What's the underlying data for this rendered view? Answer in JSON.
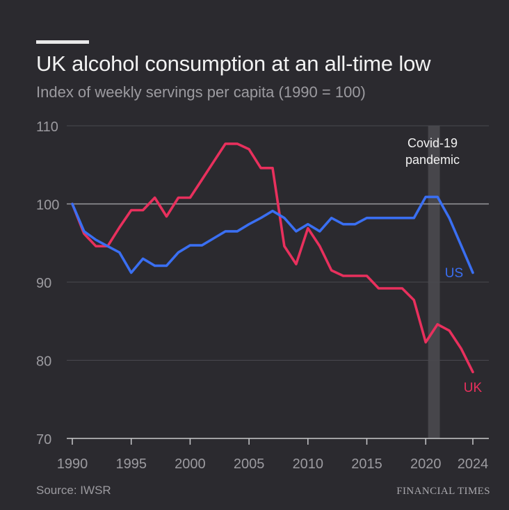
{
  "title": "UK alcohol consumption at an all-time low",
  "subtitle": "Index of weekly servings per capita (1990 = 100)",
  "source": "Source: IWSR",
  "brand": "FINANCIAL TIMES",
  "annotation": {
    "text_line1": "Covid-19",
    "text_line2": "pandemic",
    "x_range": [
      2020.2,
      2021.2
    ]
  },
  "chart_data": {
    "type": "line",
    "title": "UK alcohol consumption at an all-time low",
    "subtitle": "Index of weekly servings per capita (1990 = 100)",
    "xlabel": "",
    "ylabel": "",
    "xlim": [
      1990,
      2024
    ],
    "ylim": [
      70,
      110
    ],
    "x_ticks": [
      1990,
      1995,
      2000,
      2005,
      2010,
      2015,
      2020,
      2024
    ],
    "y_ticks": [
      70,
      80,
      90,
      100,
      110
    ],
    "reference_line": 100,
    "x": [
      1990,
      1991,
      1992,
      1993,
      1994,
      1995,
      1996,
      1997,
      1998,
      1999,
      2000,
      2001,
      2002,
      2003,
      2004,
      2005,
      2006,
      2007,
      2008,
      2009,
      2010,
      2011,
      2012,
      2013,
      2014,
      2015,
      2016,
      2017,
      2018,
      2019,
      2020,
      2021,
      2022,
      2023,
      2024
    ],
    "series": [
      {
        "name": "UK",
        "color": "#e8305d",
        "values": [
          100,
          96.2,
          94.6,
          94.6,
          97,
          99.2,
          99.2,
          100.8,
          98.4,
          100.8,
          100.8,
          103.1,
          105.4,
          107.7,
          107.7,
          107,
          104.6,
          104.6,
          94.6,
          92.3,
          96.9,
          94.6,
          91.5,
          90.8,
          90.8,
          90.8,
          89.2,
          89.2,
          89.2,
          87.7,
          82.3,
          84.6,
          83.8,
          81.5,
          78.5
        ]
      },
      {
        "name": "US",
        "color": "#3a6ff2",
        "values": [
          100,
          96.5,
          95.4,
          94.6,
          93.8,
          91.2,
          93,
          92.1,
          92.1,
          93.8,
          94.7,
          94.7,
          95.6,
          96.5,
          96.5,
          97.4,
          98.2,
          99.1,
          98.2,
          96.5,
          97.4,
          96.5,
          98.2,
          97.4,
          97.4,
          98.2,
          98.2,
          98.2,
          98.2,
          98.2,
          100.9,
          100.9,
          98.2,
          94.7,
          91.2
        ]
      }
    ],
    "grid": true,
    "legend": "inline labels at line ends"
  }
}
